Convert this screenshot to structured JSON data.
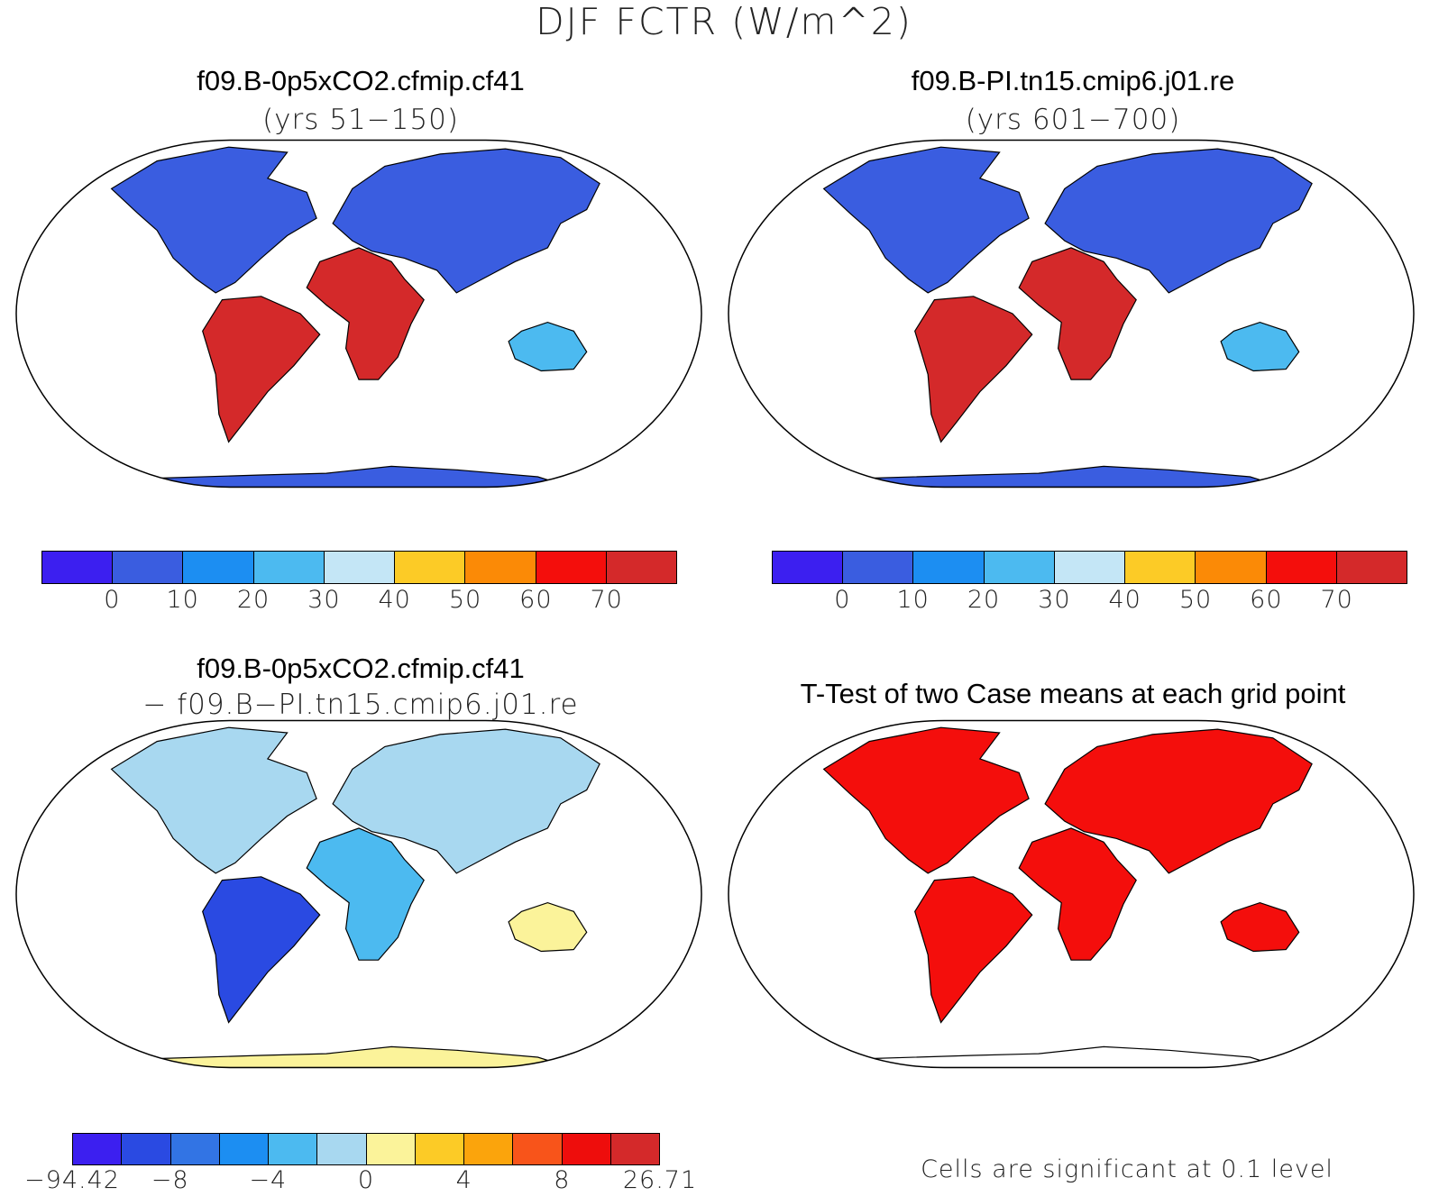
{
  "figure": {
    "main_title": "DJF FCTR (W/m^2)"
  },
  "panels": [
    {
      "id": "case1",
      "title": "f09.B-0p5xCO2.cfmip.cf41",
      "subtitle": "(yrs 51−150)",
      "colorbar": {
        "colors": [
          "#3c1ff0",
          "#3a5de0",
          "#1c8ef2",
          "#4cbaf0",
          "#c4e6f6",
          "#fccb26",
          "#fb8a06",
          "#f40e0c",
          "#d4292a"
        ],
        "tick_labels": [
          "0",
          "10",
          "20",
          "30",
          "40",
          "50",
          "60",
          "70"
        ]
      }
    },
    {
      "id": "case2",
      "title": "f09.B-PI.tn15.cmip6.j01.re",
      "subtitle": "(yrs 601−700)",
      "colorbar": {
        "colors": [
          "#3c1ff0",
          "#3a5de0",
          "#1c8ef2",
          "#4cbaf0",
          "#c4e6f6",
          "#fccb26",
          "#fb8a06",
          "#f40e0c",
          "#d4292a"
        ],
        "tick_labels": [
          "0",
          "10",
          "20",
          "30",
          "40",
          "50",
          "60",
          "70"
        ]
      }
    },
    {
      "id": "difference",
      "title": "f09.B-0p5xCO2.cfmip.cf41",
      "subtitle": "− f09.B−PI.tn15.cmip6.j01.re",
      "colorbar": {
        "colors": [
          "#3c1ff0",
          "#2a4ae2",
          "#3274e4",
          "#1c8ef2",
          "#4cbaf0",
          "#a8d8f0",
          "#fbf39a",
          "#fccb26",
          "#fba40c",
          "#f8541a",
          "#ee0d0c",
          "#d4292a"
        ],
        "tick_labels": [
          "−94.42",
          "−8",
          "−4",
          "0",
          "4",
          "8",
          "26.71"
        ]
      }
    },
    {
      "id": "ttest",
      "title": "T-Test of two Case means at each grid point",
      "note": "Cells are significant at 0.1 level",
      "significant_color": "#f40e0c"
    }
  ]
}
